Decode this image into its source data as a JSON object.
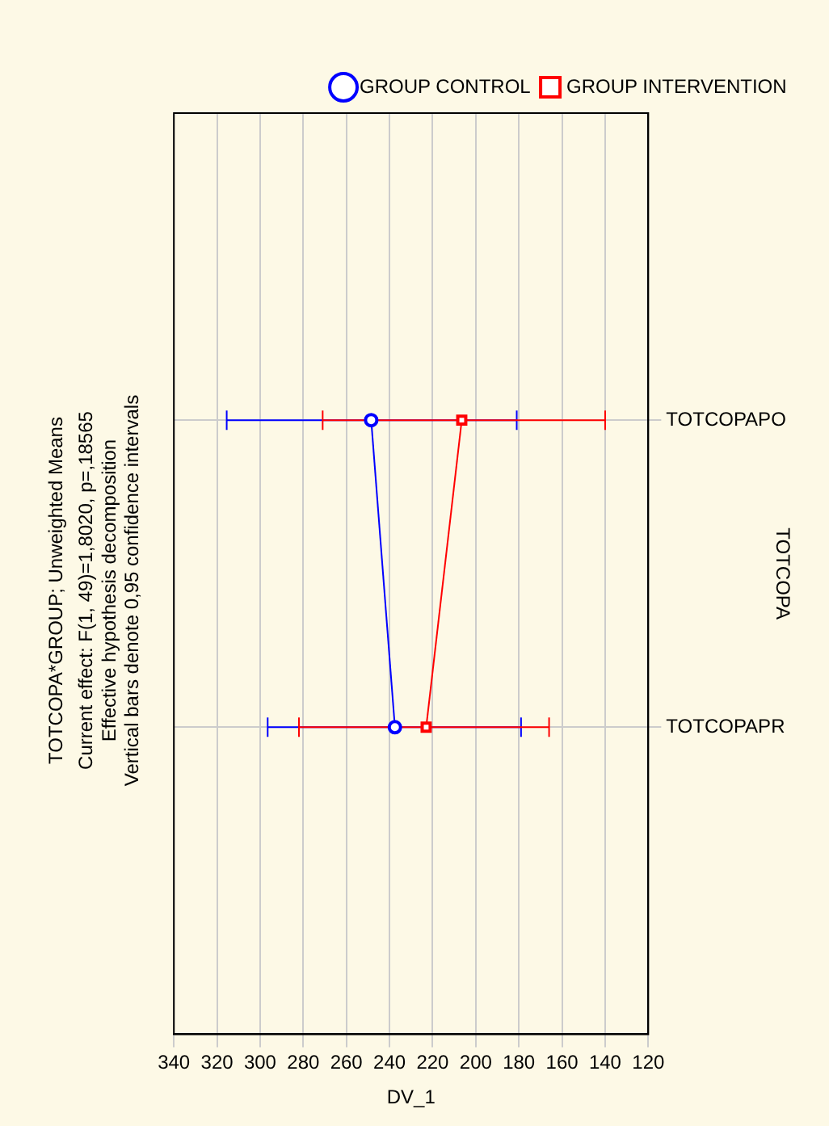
{
  "chart_data": {
    "type": "line",
    "orientation": "horizontal",
    "title": "TOTCOPA*GROUP; Unweighted Means",
    "subtitle": "Current effect: F(1, 49)=1,8020, p=,18565",
    "annotations": [
      "Effective hypothesis decomposition",
      "Vertical bars denote 0,95 confidence intervals"
    ],
    "xlabel": "DV_1",
    "ylabel": "TOTCOPA",
    "categories": [
      "TOTCOPAPO",
      "TOTCOPAPR"
    ],
    "series": [
      {
        "name": "GROUP CONTROL",
        "color": "#0000ff",
        "marker": "circle",
        "values": [
          248.5,
          237.5
        ],
        "errors": [
          [
            181,
            315.5
          ],
          [
            179,
            296.5
          ]
        ]
      },
      {
        "name": "GROUP INTERVENTION",
        "color": "#ff0000",
        "marker": "square",
        "values": [
          206.5,
          223
        ],
        "errors": [
          [
            140,
            271
          ],
          [
            166,
            282
          ]
        ]
      }
    ],
    "xlim": [
      340,
      120
    ],
    "xticks": [
      340,
      320,
      300,
      280,
      260,
      240,
      220,
      200,
      180,
      160,
      140,
      120
    ],
    "grid": true,
    "legend": "top right"
  }
}
